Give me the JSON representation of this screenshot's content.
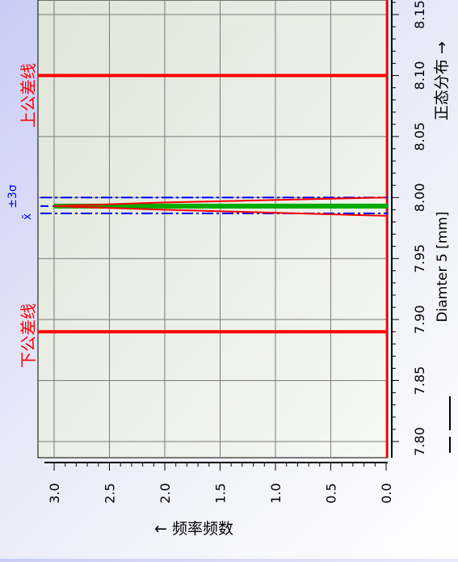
{
  "chart_data": {
    "type": "line",
    "orientation": "rotated-90-clockwise",
    "xlabel": "Diamter 5 [mm]",
    "xlabel_suffix": "正态分布 →",
    "ylabel": "← 频率频数",
    "x_ticks": [
      "7.80",
      "7.85",
      "7.90",
      "7.95",
      "8.00",
      "8.05",
      "8.10",
      "8.15"
    ],
    "y_ticks": [
      "0.0",
      "0.5",
      "1.0",
      "1.5",
      "2.0",
      "2.5",
      "3.0"
    ],
    "xlim": [
      7.78,
      8.18
    ],
    "ylim": [
      0,
      3.1
    ],
    "grid": true,
    "reference_lines": [
      {
        "label": "上公差线",
        "x": 8.1,
        "color": "#ff0000"
      },
      {
        "label": "下公差线",
        "x": 7.89,
        "color": "#ff0000"
      }
    ],
    "statistic_lines": {
      "label_top": "±3σ",
      "label_bottom": "x̄",
      "mean": 7.993,
      "minus_3sigma": 7.987,
      "plus_3sigma": 8.0,
      "color": "#0000ff"
    },
    "series": [
      {
        "x": [
          7.985,
          7.99,
          7.993,
          7.996,
          8.0
        ],
        "y": [
          0.0,
          2.0,
          3.0,
          2.0,
          0.0
        ],
        "color": "#ff0000"
      }
    ],
    "histogram": {
      "x": 7.993,
      "height": 3.0,
      "color": "#00aa00"
    }
  }
}
